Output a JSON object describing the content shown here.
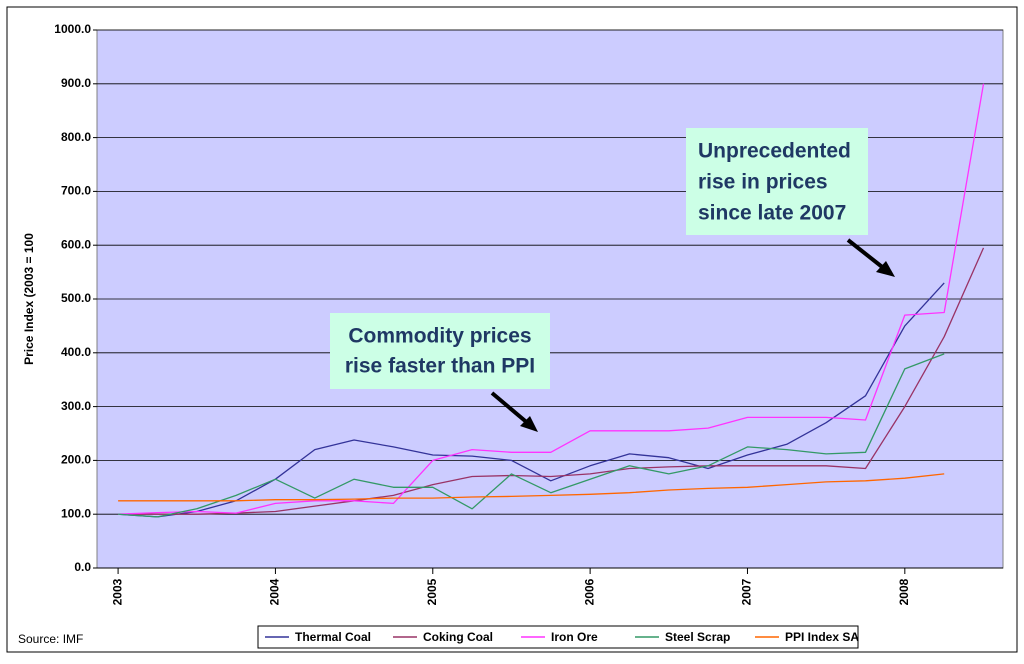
{
  "chart_data": {
    "type": "line",
    "y_label": "Price Index (2003 = 100",
    "source": "Source: IMF",
    "background": "#ccccff",
    "grid": true,
    "legend": "bottom",
    "xlim": [
      2002.866,
      2008.624
    ],
    "xticks": [
      2003,
      2004,
      2005,
      2006,
      2007,
      2008
    ],
    "ylim": [
      0,
      1000
    ],
    "yticks": [
      {
        "value": 0,
        "label": "0.0"
      },
      {
        "value": 100,
        "label": "100.0"
      },
      {
        "value": 200,
        "label": "200.0"
      },
      {
        "value": 300,
        "label": "300.0"
      },
      {
        "value": 400,
        "label": "400.0"
      },
      {
        "value": 500,
        "label": "500.0"
      },
      {
        "value": 600,
        "label": "600.0"
      },
      {
        "value": 700,
        "label": "700.0"
      },
      {
        "value": 800,
        "label": "800.0"
      },
      {
        "value": 900,
        "label": "900.0"
      },
      {
        "value": 1000,
        "label": "1000.0"
      }
    ],
    "x": [
      2003,
      2003.25,
      2003.5,
      2003.75,
      2004,
      2004.25,
      2004.5,
      2004.75,
      2005,
      2005.25,
      2005.5,
      2005.75,
      2006,
      2006.25,
      2006.5,
      2006.75,
      2007,
      2007.25,
      2007.5,
      2007.75,
      2008,
      2008.25,
      2008.5
    ],
    "series": [
      {
        "name": "Thermal Coal",
        "color": "#333399",
        "values": [
          100,
          95,
          105,
          125,
          165,
          220,
          238,
          225,
          210,
          208,
          200,
          162,
          190,
          212,
          205,
          185,
          210,
          230,
          270,
          320,
          450,
          530,
          null
        ]
      },
      {
        "name": "Coking Coal",
        "color": "#993366",
        "values": [
          100,
          100,
          100,
          102,
          105,
          115,
          125,
          135,
          155,
          170,
          172,
          170,
          175,
          185,
          188,
          190,
          190,
          190,
          190,
          185,
          300,
          430,
          595
        ]
      },
      {
        "name": "Iron Ore",
        "color": "#ff33ff",
        "values": [
          100,
          103,
          105,
          102,
          120,
          125,
          125,
          120,
          200,
          220,
          215,
          215,
          255,
          255,
          255,
          260,
          280,
          280,
          280,
          275,
          470,
          475,
          900
        ]
      },
      {
        "name": "Steel Scrap",
        "color": "#339966",
        "values": [
          100,
          95,
          110,
          135,
          165,
          130,
          165,
          150,
          150,
          110,
          175,
          140,
          165,
          190,
          175,
          190,
          225,
          220,
          212,
          215,
          370,
          398,
          null
        ]
      },
      {
        "name": "PPI Index SA",
        "color": "#ff6600",
        "values": [
          125,
          125,
          125,
          125,
          127,
          127,
          128,
          130,
          130,
          132,
          133,
          135,
          137,
          140,
          145,
          148,
          150,
          155,
          160,
          162,
          167,
          175,
          null
        ]
      }
    ],
    "annotations": [
      {
        "lines": [
          "Commodity prices",
          "rise faster than PPI"
        ]
      },
      {
        "lines": [
          "Unprecedented",
          "rise in prices",
          "since late 2007"
        ]
      }
    ]
  }
}
